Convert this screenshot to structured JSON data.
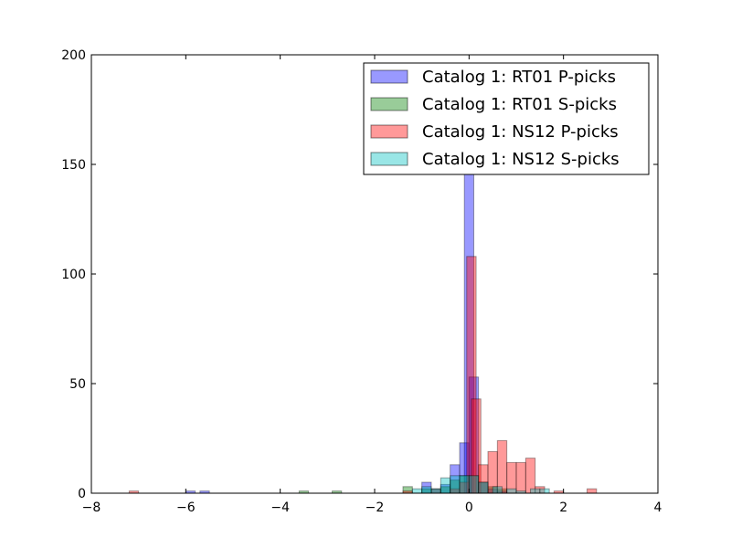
{
  "chart_data": {
    "type": "bar",
    "title": "",
    "xlabel": "",
    "ylabel": "",
    "xlim": [
      -8,
      4
    ],
    "ylim": [
      0,
      200
    ],
    "x_ticks": [
      "−8",
      "−6",
      "−4",
      "−2",
      "0",
      "2",
      "4"
    ],
    "y_ticks": [
      "0",
      "50",
      "100",
      "150",
      "200"
    ],
    "grid": false,
    "legend_position": "top-right",
    "bar_width": 0.2,
    "series": [
      {
        "name": "Catalog 1: RT01 P-picks",
        "color": "#0000ff",
        "bins": [
          {
            "x": -5.9,
            "value": 1
          },
          {
            "x": -5.6,
            "value": 1
          },
          {
            "x": -0.9,
            "value": 5
          },
          {
            "x": -0.7,
            "value": 2
          },
          {
            "x": -0.5,
            "value": 4
          },
          {
            "x": -0.3,
            "value": 13
          },
          {
            "x": -0.1,
            "value": 23
          },
          {
            "x": 0.0,
            "value": 160
          },
          {
            "x": 0.1,
            "value": 53
          },
          {
            "x": 0.3,
            "value": 5
          },
          {
            "x": 0.5,
            "value": 2
          },
          {
            "x": 0.7,
            "value": 1
          }
        ]
      },
      {
        "name": "Catalog 1: RT01 S-picks",
        "color": "#008000",
        "bins": [
          {
            "x": -3.5,
            "value": 1
          },
          {
            "x": -2.8,
            "value": 1
          },
          {
            "x": -1.3,
            "value": 3
          },
          {
            "x": -0.9,
            "value": 2
          },
          {
            "x": -0.7,
            "value": 2
          },
          {
            "x": -0.5,
            "value": 3
          },
          {
            "x": -0.3,
            "value": 6
          },
          {
            "x": -0.1,
            "value": 8
          },
          {
            "x": 0.1,
            "value": 8
          },
          {
            "x": 0.3,
            "value": 5
          },
          {
            "x": 0.5,
            "value": 3
          },
          {
            "x": 0.7,
            "value": 2
          }
        ]
      },
      {
        "name": "Catalog 1: NS12 P-picks",
        "color": "#ff0000",
        "bins": [
          {
            "x": -7.1,
            "value": 1
          },
          {
            "x": -1.3,
            "value": 1
          },
          {
            "x": -0.3,
            "value": 2
          },
          {
            "x": -0.1,
            "value": 5
          },
          {
            "x": 0.05,
            "value": 108
          },
          {
            "x": 0.15,
            "value": 43
          },
          {
            "x": 0.3,
            "value": 13
          },
          {
            "x": 0.5,
            "value": 19
          },
          {
            "x": 0.7,
            "value": 24
          },
          {
            "x": 0.9,
            "value": 14
          },
          {
            "x": 1.1,
            "value": 14
          },
          {
            "x": 1.3,
            "value": 16
          },
          {
            "x": 1.5,
            "value": 3
          },
          {
            "x": 1.9,
            "value": 1
          },
          {
            "x": 2.6,
            "value": 2
          }
        ]
      },
      {
        "name": "Catalog 1: NS12 S-picks",
        "color": "#00c0c0",
        "bins": [
          {
            "x": -1.1,
            "value": 2
          },
          {
            "x": -0.9,
            "value": 3
          },
          {
            "x": -0.5,
            "value": 7
          },
          {
            "x": -0.3,
            "value": 8
          },
          {
            "x": -0.1,
            "value": 8
          },
          {
            "x": 0.1,
            "value": 8
          },
          {
            "x": 0.3,
            "value": 5
          },
          {
            "x": 0.6,
            "value": 3
          },
          {
            "x": 0.9,
            "value": 2
          },
          {
            "x": 1.1,
            "value": 1
          },
          {
            "x": 1.4,
            "value": 2
          },
          {
            "x": 1.6,
            "value": 2
          }
        ]
      }
    ]
  }
}
